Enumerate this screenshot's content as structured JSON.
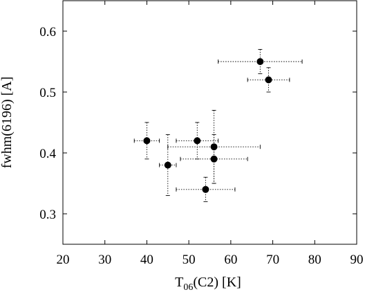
{
  "chart_data": {
    "type": "scatter",
    "title": "",
    "xlabel": {
      "main": "T",
      "sub": "06",
      "rest": "(C2) [K]"
    },
    "ylabel": "fwhm(6196) [A]",
    "xlim": [
      20,
      90
    ],
    "ylim": [
      0.25,
      0.65
    ],
    "x_ticks": [
      20,
      30,
      40,
      50,
      60,
      70,
      80,
      90
    ],
    "y_ticks": [
      0.3,
      0.4,
      0.5,
      0.6
    ],
    "x_tick_labels": [
      "20",
      "30",
      "40",
      "50",
      "60",
      "70",
      "80",
      "90"
    ],
    "y_tick_labels": [
      "0.3",
      "0.4",
      "0.5",
      "0.6"
    ],
    "grid": false,
    "legend": "none",
    "error_bars": "dotted, with caps",
    "marker_color": "#000000",
    "points": [
      {
        "x": 67,
        "y": 0.55,
        "xerr": [
          10,
          10
        ],
        "yerr": [
          0.02,
          0.02
        ]
      },
      {
        "x": 69,
        "y": 0.52,
        "xerr": [
          5,
          5
        ],
        "yerr": [
          0.02,
          0.02
        ]
      },
      {
        "x": 40,
        "y": 0.42,
        "xerr": [
          3,
          3
        ],
        "yerr": [
          0.03,
          0.03
        ]
      },
      {
        "x": 52,
        "y": 0.42,
        "xerr": [
          5,
          5
        ],
        "yerr": [
          0.03,
          0.03
        ]
      },
      {
        "x": 56,
        "y": 0.41,
        "xerr": [
          11,
          11
        ],
        "yerr": [
          0.06,
          0.06
        ]
      },
      {
        "x": 56,
        "y": 0.39,
        "xerr": [
          8,
          8
        ],
        "yerr": [
          0.04,
          0.04
        ]
      },
      {
        "x": 45,
        "y": 0.38,
        "xerr": [
          2,
          2
        ],
        "yerr": [
          0.05,
          0.05
        ]
      },
      {
        "x": 54,
        "y": 0.34,
        "xerr": [
          7,
          7
        ],
        "yerr": [
          0.02,
          0.02
        ]
      }
    ]
  }
}
